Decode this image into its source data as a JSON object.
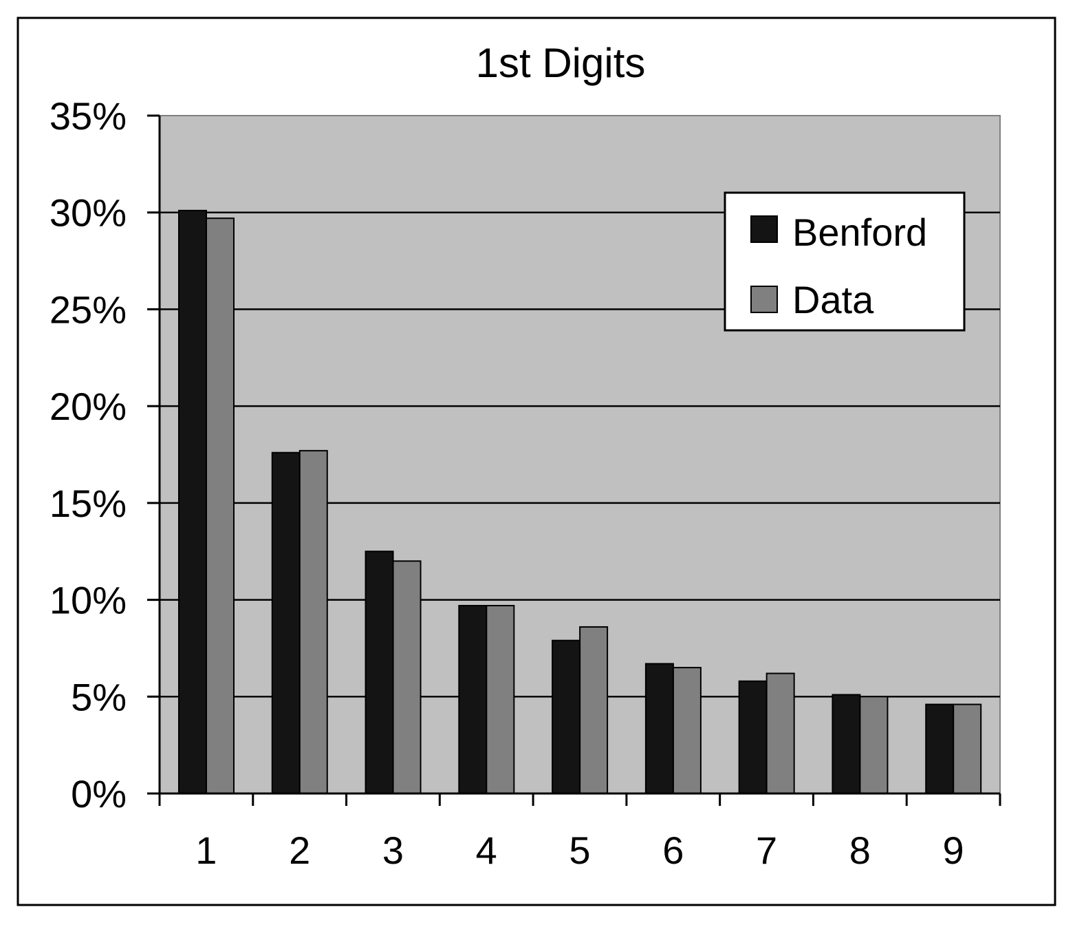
{
  "chart_data": {
    "type": "bar",
    "title": "1st Digits",
    "xlabel": "",
    "ylabel": "",
    "categories": [
      "1",
      "2",
      "3",
      "4",
      "5",
      "6",
      "7",
      "8",
      "9"
    ],
    "series": [
      {
        "name": "Benford",
        "color": "#141414",
        "values": [
          30.1,
          17.6,
          12.5,
          9.7,
          7.9,
          6.7,
          5.8,
          5.1,
          4.6
        ]
      },
      {
        "name": "Data",
        "color": "#808080",
        "values": [
          29.7,
          17.7,
          12.0,
          9.7,
          8.6,
          6.5,
          6.2,
          5.0,
          4.6
        ]
      }
    ],
    "ylim": [
      0,
      35
    ],
    "yticks": [
      "0%",
      "5%",
      "10%",
      "15%",
      "20%",
      "25%",
      "30%",
      "35%"
    ],
    "grid": true,
    "legend_position": "top-right",
    "plot_background": "#c0c0c0"
  }
}
